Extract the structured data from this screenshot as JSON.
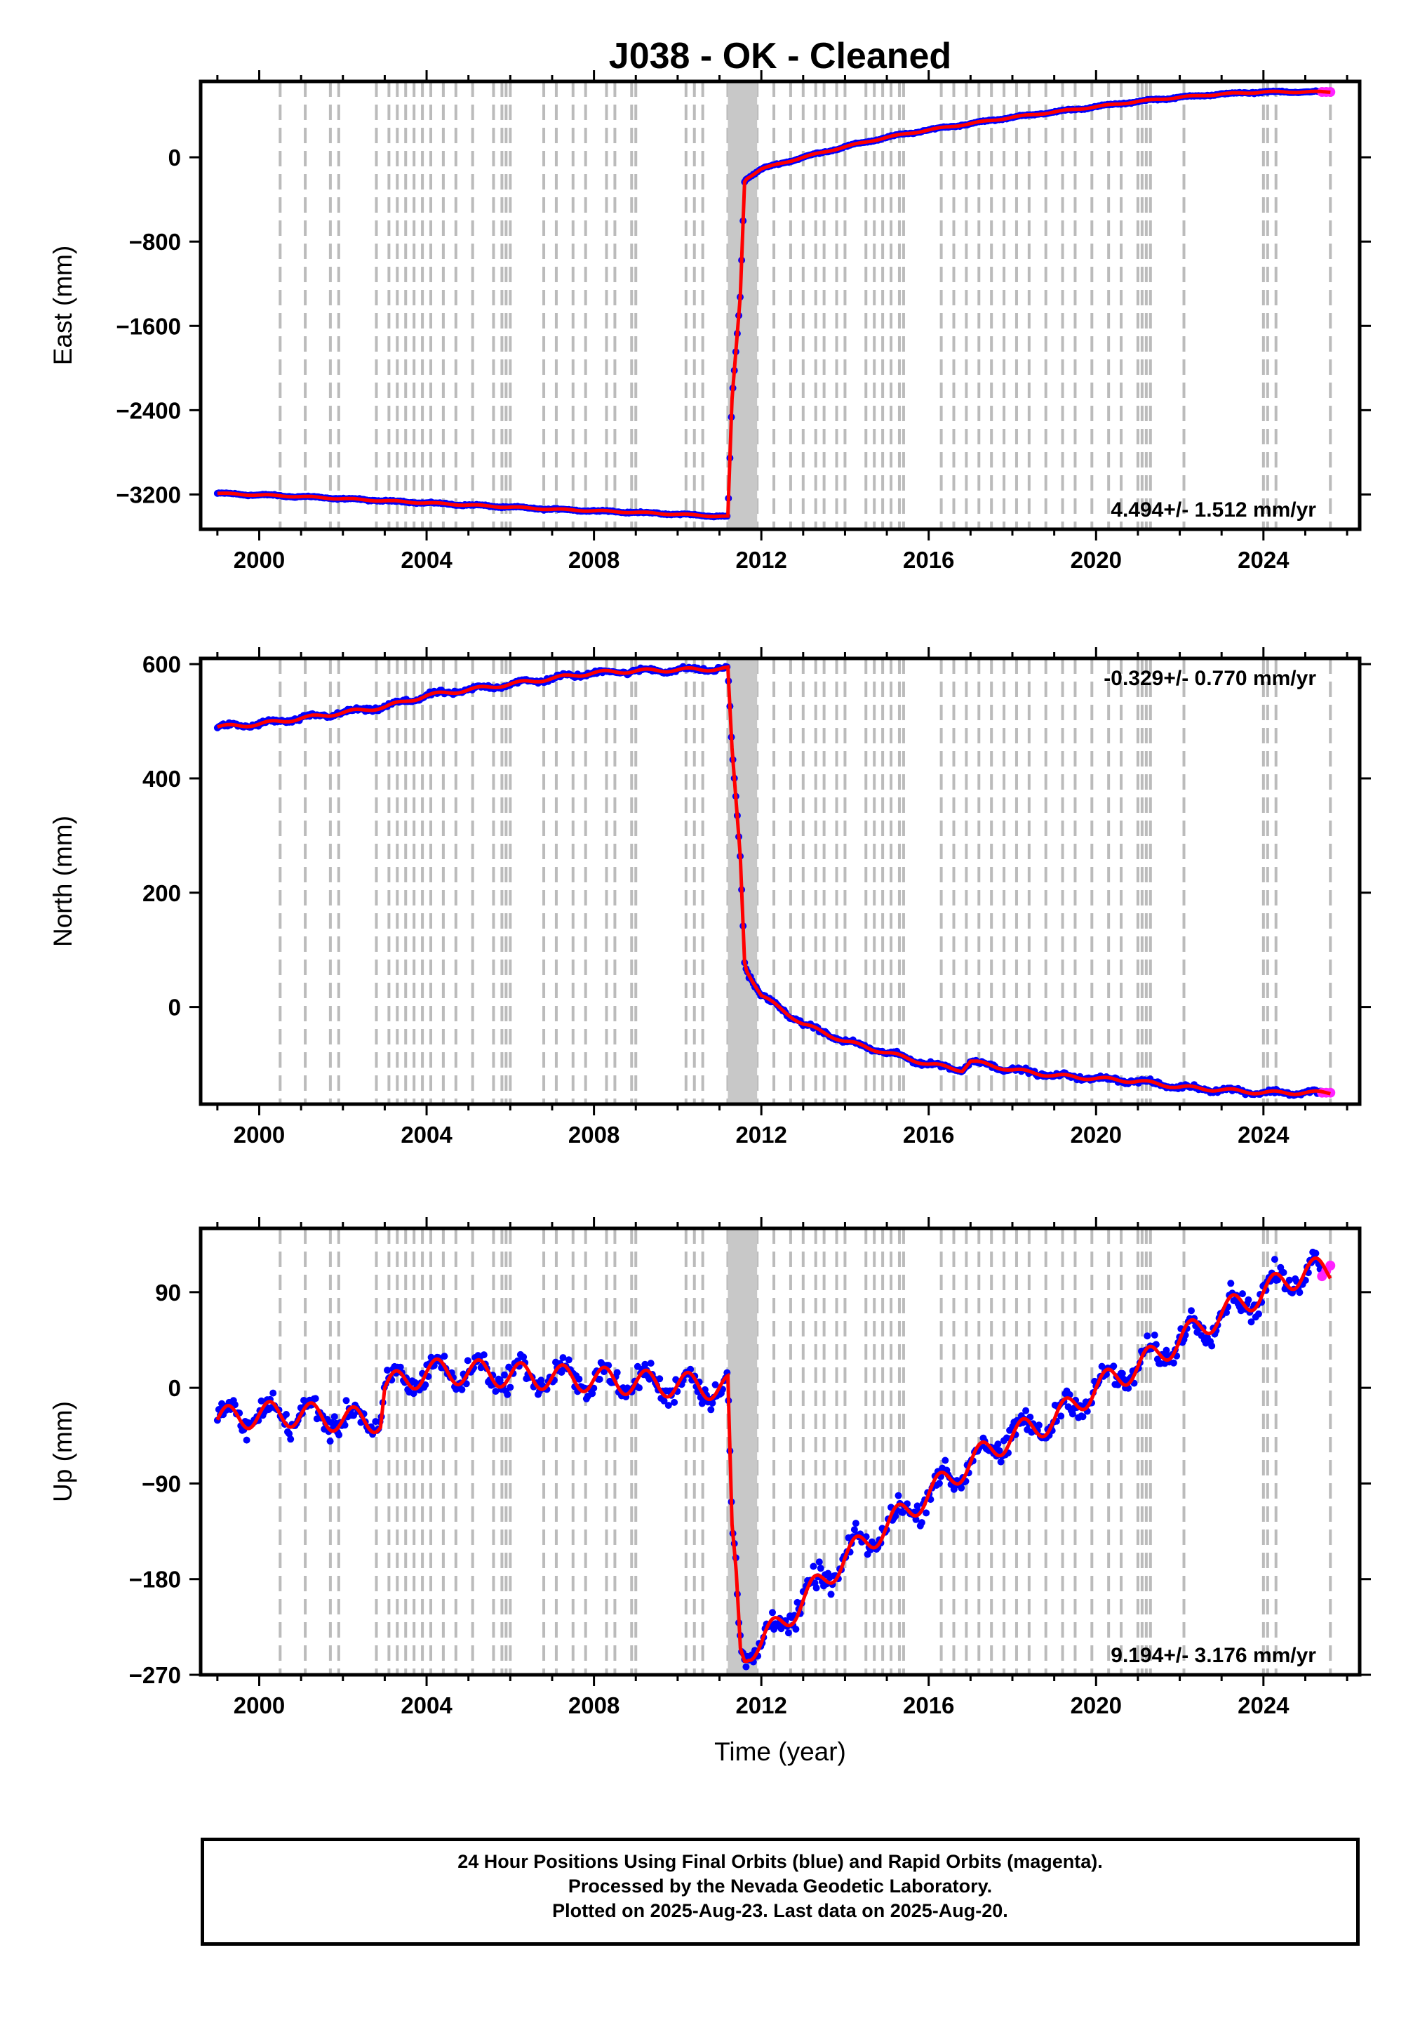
{
  "title": "J038  - OK - Cleaned",
  "xlabel": "Time (year)",
  "colors": {
    "final_orbits": "#0000ff",
    "rapid_orbits": "#ff22ff",
    "model": "#ff0000",
    "event_lines": "#bbbbbb"
  },
  "xlim": [
    1998.6,
    2026.3
  ],
  "xticks": [
    2000,
    2004,
    2008,
    2012,
    2016,
    2020,
    2024
  ],
  "event_lines": [
    2000.5,
    2001.1,
    2001.7,
    2001.9,
    2002.8,
    2003.1,
    2003.3,
    2003.5,
    2003.7,
    2003.9,
    2004.1,
    2004.4,
    2004.7,
    2005.1,
    2005.6,
    2005.8,
    2005.9,
    2006.0,
    2006.8,
    2007.1,
    2007.5,
    2007.8,
    2008.3,
    2008.5,
    2008.9,
    2009.0,
    2010.2,
    2010.4,
    2010.6,
    2011.2,
    2011.3,
    2011.4,
    2011.5,
    2011.6,
    2011.7,
    2011.8,
    2011.9,
    2012.3,
    2012.7,
    2013.0,
    2013.3,
    2013.5,
    2013.8,
    2014.0,
    2014.5,
    2014.7,
    2014.9,
    2015.1,
    2015.3,
    2015.4,
    2016.3,
    2016.6,
    2016.9,
    2017.2,
    2017.5,
    2017.8,
    2018.1,
    2018.4,
    2018.8,
    2019.2,
    2019.5,
    2019.9,
    2020.3,
    2020.6,
    2021.0,
    2021.1,
    2021.2,
    2021.3,
    2022.1,
    2024.0,
    2024.1,
    2024.3,
    2025.6
  ],
  "chart_data": [
    {
      "type": "scatter",
      "panel": "east",
      "ylabel": "East (mm)",
      "ylim": [
        -3530,
        720
      ],
      "yticks": [
        0,
        -800,
        -1600,
        -2400,
        -3200
      ],
      "rate_label": "4.494+/- 1.512 mm/yr",
      "rate_position": "bottom-right",
      "series": [
        {
          "name": "Final Orbits",
          "x": [
            1999.0,
            2001.0,
            2003.0,
            2005.0,
            2007.0,
            2009.0,
            2011.2,
            2011.3,
            2011.5,
            2011.6,
            2011.65,
            2012.0,
            2013.0,
            2014.0,
            2015.0,
            2016.0,
            2017.0,
            2018.0,
            2019.0,
            2020.0,
            2021.0,
            2022.0,
            2023.0,
            2024.0,
            2025.0,
            2025.6
          ],
          "y": [
            -3190,
            -3220,
            -3260,
            -3300,
            -3340,
            -3370,
            -3410,
            -2300,
            -1300,
            -230,
            -200,
            -110,
            0,
            100,
            190,
            260,
            320,
            380,
            430,
            480,
            530,
            570,
            600,
            620,
            620,
            620
          ]
        },
        {
          "name": "Rapid Orbits",
          "x": [
            2025.4,
            2025.5,
            2025.6
          ],
          "y": [
            620,
            620,
            620
          ]
        }
      ]
    },
    {
      "type": "scatter",
      "panel": "north",
      "ylabel": "North (mm)",
      "ylim": [
        -170,
        610
      ],
      "yticks": [
        0,
        200,
        400,
        600
      ],
      "rate_label": "-0.329+/- 0.770 mm/yr",
      "rate_position": "top-right",
      "series": [
        {
          "name": "Final Orbits",
          "x": [
            1999.0,
            2000.0,
            2001.0,
            2002.0,
            2003.0,
            2004.0,
            2005.0,
            2006.0,
            2007.0,
            2008.0,
            2009.0,
            2010.0,
            2011.2,
            2011.3,
            2011.5,
            2011.6,
            2011.65,
            2012.0,
            2013.0,
            2014.0,
            2015.0,
            2016.0,
            2016.8,
            2017.0,
            2018.0,
            2019.0,
            2020.0,
            2021.0,
            2022.0,
            2023.0,
            2024.0,
            2025.0,
            2025.6
          ],
          "y": [
            490,
            495,
            505,
            515,
            525,
            545,
            555,
            565,
            575,
            585,
            588,
            590,
            592,
            450,
            260,
            80,
            65,
            20,
            -30,
            -60,
            -80,
            -100,
            -110,
            -95,
            -110,
            -120,
            -125,
            -130,
            -140,
            -145,
            -150,
            -150,
            -150
          ]
        },
        {
          "name": "Rapid Orbits",
          "x": [
            2025.4,
            2025.5,
            2025.6
          ],
          "y": [
            -150,
            -150,
            -150
          ]
        }
      ]
    },
    {
      "type": "scatter",
      "panel": "up",
      "ylabel": "Up (mm)",
      "ylim": [
        -270,
        150
      ],
      "yticks": [
        90,
        0,
        -90,
        -180,
        -270
      ],
      "rate_label": "9.194+/- 3.176 mm/yr",
      "rate_position": "bottom-right",
      "series": [
        {
          "name": "Final Orbits",
          "x": [
            1999.0,
            2000.0,
            2001.0,
            2002.0,
            2002.9,
            2003.0,
            2004.0,
            2005.0,
            2006.0,
            2007.0,
            2008.0,
            2009.0,
            2010.0,
            2011.2,
            2011.3,
            2011.4,
            2011.5,
            2011.6,
            2011.7,
            2012.0,
            2013.0,
            2014.0,
            2015.0,
            2016.0,
            2017.0,
            2018.0,
            2019.0,
            2020.0,
            2021.0,
            2022.0,
            2023.0,
            2024.0,
            2025.0,
            2025.6
          ],
          "y": [
            -30,
            -25,
            -25,
            -30,
            -30,
            0,
            15,
            15,
            12,
            10,
            8,
            5,
            3,
            0,
            -140,
            -180,
            -245,
            -250,
            -245,
            -240,
            -200,
            -160,
            -130,
            -100,
            -70,
            -45,
            -30,
            0,
            20,
            45,
            70,
            90,
            110,
            110
          ]
        },
        {
          "name": "Rapid Orbits",
          "x": [
            2025.4,
            2025.5,
            2025.6
          ],
          "y": [
            105,
            110,
            115
          ]
        }
      ]
    }
  ],
  "footer": {
    "line1": "24 Hour Positions Using Final Orbits (blue) and Rapid Orbits (magenta).",
    "line2": "Processed by the Nevada Geodetic Laboratory.",
    "line3": "Plotted on 2025-Aug-23. Last data on 2025-Aug-20."
  }
}
